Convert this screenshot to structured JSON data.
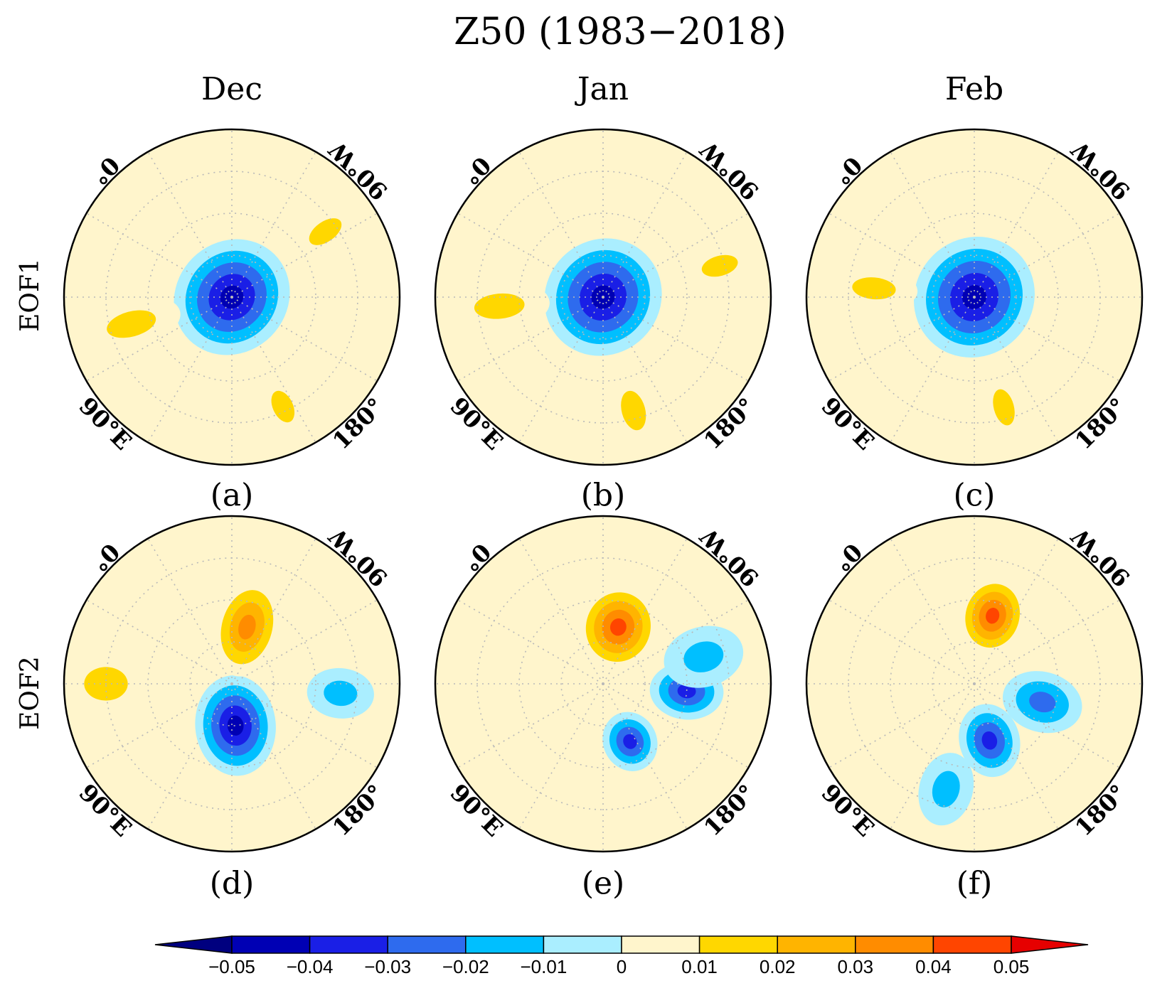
{
  "chart_data": {
    "type": "polar-contour-map",
    "title": "Z50 (1983−2018)",
    "columns": [
      "Dec",
      "Jan",
      "Feb"
    ],
    "rows": [
      "EOF1",
      "EOF2"
    ],
    "longitude_labels": {
      "top_left": "0°",
      "top_right": "90°W",
      "bottom_right": "180°",
      "bottom_left": "90°E"
    },
    "colorbar": {
      "levels": [
        "−0.05",
        "−0.04",
        "−0.03",
        "−0.02",
        "−0.01",
        "0",
        "0.01",
        "0.02",
        "0.03",
        "0.04",
        "0.05"
      ],
      "colors": [
        "#00007f",
        "#0000b4",
        "#1a1fe6",
        "#2e6bee",
        "#00bfff",
        "#aaeeff",
        "#fff5cc",
        "#ffd700",
        "#ffb400",
        "#ff8c00",
        "#ff4500",
        "#e60000"
      ],
      "extend": "both"
    },
    "panels": [
      {
        "label": "(a)",
        "row": "EOF1",
        "month": "Dec",
        "features": [
          {
            "kind": "neg",
            "lon": 0,
            "r": 0.0,
            "sx": 0.36,
            "sy": 0.33,
            "min": -0.05
          },
          {
            "kind": "pos",
            "lon": 110,
            "r": 0.72,
            "sx": 0.2,
            "sy": 0.12,
            "max": 0.016
          },
          {
            "kind": "pos",
            "lon": 210,
            "r": 0.62,
            "sx": 0.3,
            "sy": 0.15,
            "max": 0.013
          },
          {
            "kind": "pos",
            "lon": 10,
            "r": 0.68,
            "sx": 0.22,
            "sy": 0.12,
            "max": 0.012
          }
        ]
      },
      {
        "label": "(b)",
        "row": "EOF1",
        "month": "Jan",
        "features": [
          {
            "kind": "neg",
            "lon": 0,
            "r": 0.0,
            "sx": 0.36,
            "sy": 0.34,
            "min": -0.05
          },
          {
            "kind": "pos",
            "lon": 120,
            "r": 0.7,
            "sx": 0.24,
            "sy": 0.14,
            "max": 0.014
          },
          {
            "kind": "pos",
            "lon": 220,
            "r": 0.62,
            "sx": 0.3,
            "sy": 0.15,
            "max": 0.014
          },
          {
            "kind": "pos",
            "lon": 30,
            "r": 0.72,
            "sx": 0.22,
            "sy": 0.12,
            "max": 0.012
          }
        ]
      },
      {
        "label": "(c)",
        "row": "EOF1",
        "month": "Feb",
        "features": [
          {
            "kind": "neg",
            "lon": 0,
            "r": 0.0,
            "sx": 0.37,
            "sy": 0.35,
            "min": -0.05
          },
          {
            "kind": "pos",
            "lon": 120,
            "r": 0.68,
            "sx": 0.22,
            "sy": 0.12,
            "max": 0.02
          },
          {
            "kind": "pos",
            "lon": 230,
            "r": 0.6,
            "sx": 0.26,
            "sy": 0.13,
            "max": 0.014
          }
        ]
      },
      {
        "label": "(d)",
        "row": "EOF2",
        "month": "Dec",
        "features": [
          {
            "kind": "neg",
            "lon": 130,
            "r": 0.25,
            "sx": 0.3,
            "sy": 0.24,
            "min": -0.05
          },
          {
            "kind": "pos",
            "lon": 330,
            "r": 0.35,
            "sx": 0.3,
            "sy": 0.2,
            "max": 0.032
          },
          {
            "kind": "pos",
            "lon": 225,
            "r": 0.75,
            "sx": 0.26,
            "sy": 0.2,
            "max": 0.014
          },
          {
            "kind": "neg",
            "lon": 50,
            "r": 0.65,
            "sx": 0.2,
            "sy": 0.15,
            "min": -0.012
          }
        ]
      },
      {
        "label": "(e)",
        "row": "EOF2",
        "month": "Jan",
        "features": [
          {
            "kind": "pos",
            "lon": 330,
            "r": 0.35,
            "sx": 0.26,
            "sy": 0.24,
            "max": 0.05
          },
          {
            "kind": "neg",
            "lon": 110,
            "r": 0.38,
            "sx": 0.18,
            "sy": 0.16,
            "min": -0.04
          },
          {
            "kind": "neg",
            "lon": 50,
            "r": 0.5,
            "sx": 0.22,
            "sy": 0.17,
            "min": -0.034
          },
          {
            "kind": "neg",
            "lon": 30,
            "r": 0.62,
            "sx": 0.24,
            "sy": 0.18,
            "min": -0.015
          }
        ]
      },
      {
        "label": "(f)",
        "row": "EOF2",
        "month": "Feb",
        "features": [
          {
            "kind": "pos",
            "lon": 330,
            "r": 0.42,
            "sx": 0.24,
            "sy": 0.2,
            "max": 0.05
          },
          {
            "kind": "neg",
            "lon": 120,
            "r": 0.35,
            "sx": 0.22,
            "sy": 0.18,
            "min": -0.034
          },
          {
            "kind": "neg",
            "lon": 60,
            "r": 0.42,
            "sx": 0.24,
            "sy": 0.18,
            "min": -0.028
          },
          {
            "kind": "neg",
            "lon": 150,
            "r": 0.65,
            "sx": 0.22,
            "sy": 0.16,
            "min": -0.012
          }
        ]
      }
    ]
  }
}
